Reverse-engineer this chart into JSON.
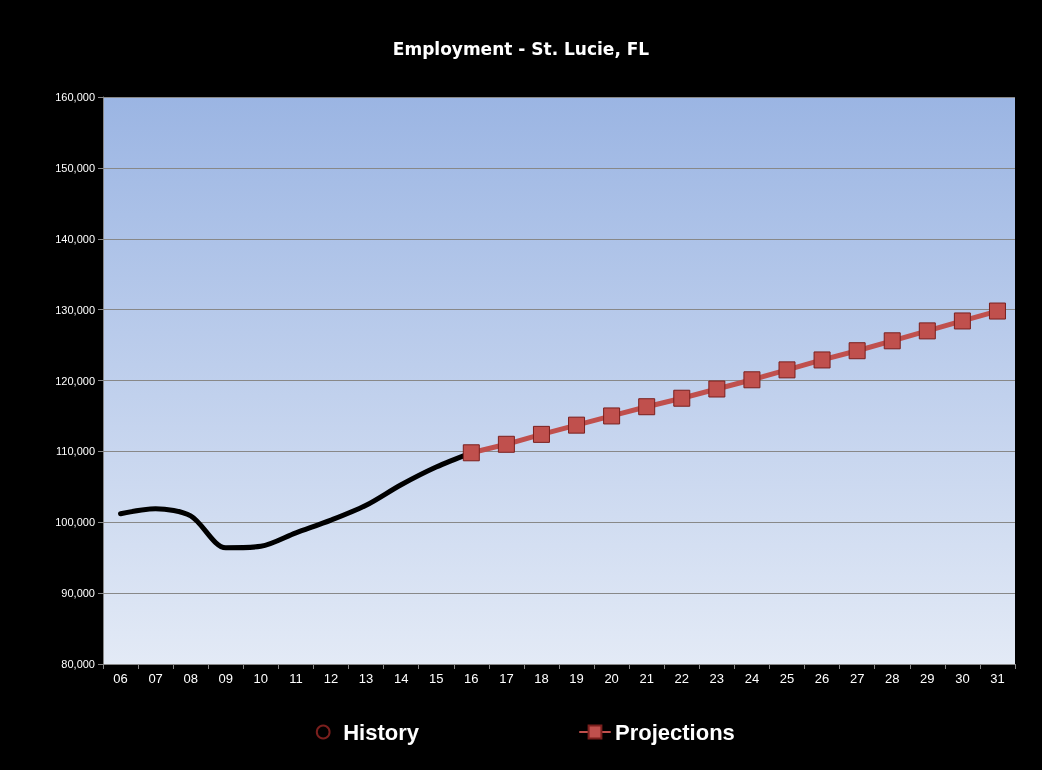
{
  "chart_data": {
    "type": "line",
    "title": "Employment - St. Lucie, FL",
    "categories": [
      "06",
      "07",
      "08",
      "09",
      "10",
      "11",
      "12",
      "13",
      "14",
      "15",
      "16",
      "17",
      "18",
      "19",
      "20",
      "21",
      "22",
      "23",
      "24",
      "25",
      "26",
      "27",
      "28",
      "29",
      "30",
      "31"
    ],
    "series": [
      {
        "name": "History",
        "color": "#000000",
        "marker": "none",
        "values": [
          101200,
          101900,
          100900,
          96400,
          96600,
          98500,
          100300,
          102400,
          105300,
          107800,
          109800,
          null,
          null,
          null,
          null,
          null,
          null,
          null,
          null,
          null,
          null,
          null,
          null,
          null,
          null,
          null
        ]
      },
      {
        "name": "Projections",
        "color": "#c0504d",
        "marker": "square",
        "values": [
          null,
          null,
          null,
          null,
          null,
          null,
          null,
          null,
          null,
          null,
          109800,
          111000,
          112400,
          113700,
          115000,
          116300,
          117500,
          118800,
          120100,
          121500,
          122900,
          124200,
          125600,
          127000,
          128400,
          129800
        ]
      }
    ],
    "ylim": [
      80000,
      160000
    ],
    "yticks": [
      {
        "value": 80000,
        "label": "80,000"
      },
      {
        "value": 90000,
        "label": "90,000"
      },
      {
        "value": 100000,
        "label": "100,000"
      },
      {
        "value": 110000,
        "label": "110,000"
      },
      {
        "value": 120000,
        "label": "120,000"
      },
      {
        "value": 130000,
        "label": "130,000"
      },
      {
        "value": 140000,
        "label": "140,000"
      },
      {
        "value": 150000,
        "label": "150,000"
      },
      {
        "value": 160000,
        "label": "160,000"
      }
    ],
    "grid": "y",
    "legend": "bottom"
  }
}
